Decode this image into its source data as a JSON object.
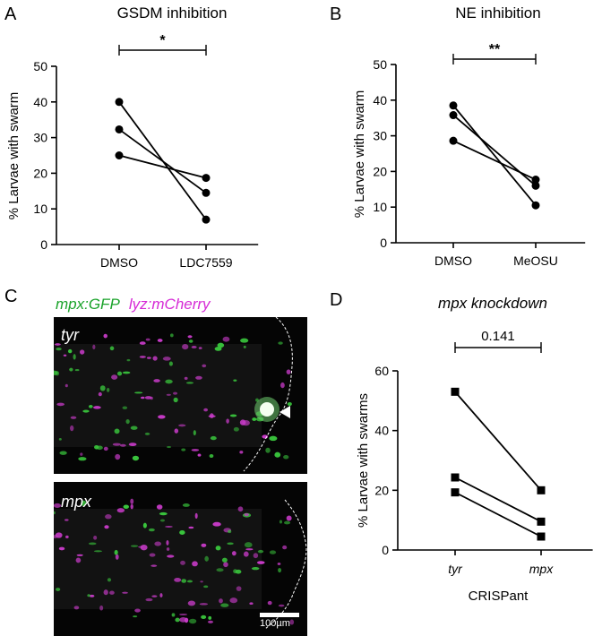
{
  "panels": {
    "A": "A",
    "B": "B",
    "C": "C",
    "D": "D"
  },
  "image_legend": {
    "green": "mpx:GFP",
    "magenta": "lyz:mCherry",
    "green_color": "#1aa32a",
    "magenta_color": "#d62ad6"
  },
  "images": {
    "top_label": "tyr",
    "bottom_label": "mpx",
    "scale_bar": "100µm"
  },
  "chart_data": [
    {
      "id": "A",
      "type": "line",
      "title": "GSDM inhibition",
      "ylabel": "% Larvae with swarm",
      "xlabel": "",
      "categories": [
        "DMSO",
        "LDC7559"
      ],
      "ylim": [
        0,
        50
      ],
      "yticks": [
        0,
        10,
        20,
        30,
        40,
        50
      ],
      "series": [
        {
          "values": [
            40.0,
            7.0
          ]
        },
        {
          "values": [
            32.3,
            14.5
          ]
        },
        {
          "values": [
            25.0,
            18.7
          ]
        }
      ],
      "marker": "circle",
      "significance": "*"
    },
    {
      "id": "B",
      "type": "line",
      "title": "NE inhibition",
      "ylabel": "% Larvae with swarm",
      "xlabel": "",
      "categories": [
        "DMSO",
        "MeOSU"
      ],
      "ylim": [
        0,
        50
      ],
      "yticks": [
        0,
        10,
        20,
        30,
        40,
        50
      ],
      "series": [
        {
          "values": [
            38.5,
            10.5
          ]
        },
        {
          "values": [
            35.8,
            16.0
          ]
        },
        {
          "values": [
            28.6,
            17.7
          ]
        }
      ],
      "marker": "circle",
      "significance": "**"
    },
    {
      "id": "D",
      "type": "line",
      "title": "mpx knockdown",
      "ylabel": "% Larvae with swarms",
      "xlabel": "CRISPant",
      "categories": [
        "tyr",
        "mpx"
      ],
      "ylim": [
        0,
        60
      ],
      "yticks": [
        0,
        20,
        40,
        60
      ],
      "series": [
        {
          "values": [
            53.0,
            20.0
          ]
        },
        {
          "values": [
            24.3,
            9.5
          ]
        },
        {
          "values": [
            19.3,
            4.5
          ]
        }
      ],
      "marker": "square",
      "significance": "0.141"
    }
  ]
}
